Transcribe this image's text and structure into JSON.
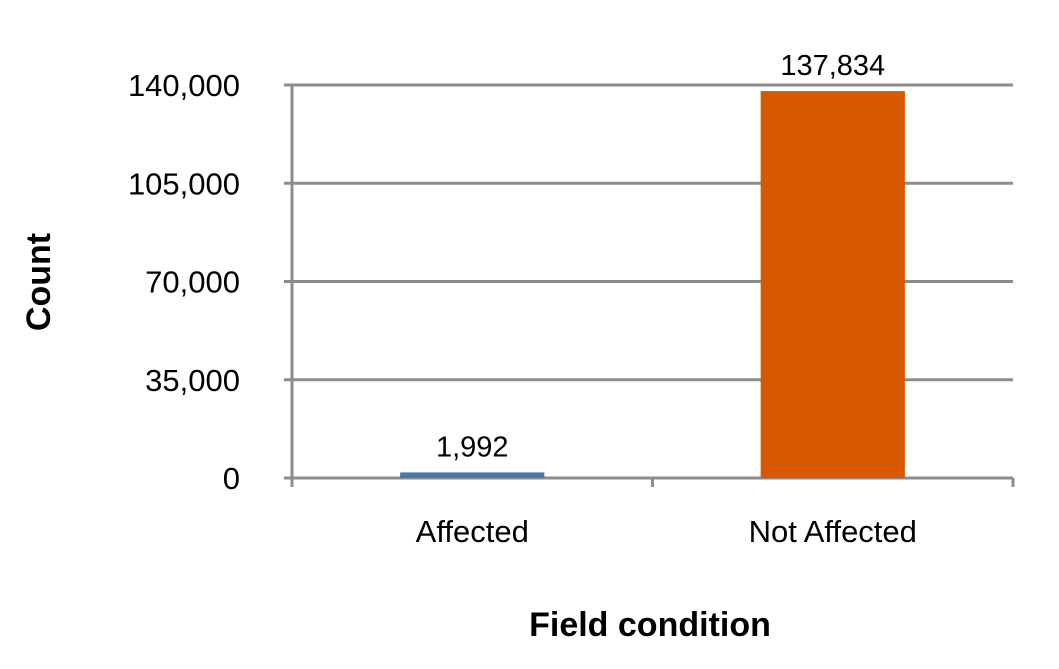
{
  "chart_data": {
    "type": "bar",
    "title": "",
    "xlabel": "Field condition",
    "ylabel": "Count",
    "categories": [
      "Affected",
      "Not Affected"
    ],
    "values": [
      1992,
      137834
    ],
    "value_labels": [
      "1,992",
      "137,834"
    ],
    "bar_colors": [
      "#4A76B0",
      "#D85800"
    ],
    "ylim": [
      0,
      140000
    ],
    "yticks": [
      0,
      35000,
      70000,
      105000,
      140000
    ],
    "ytick_labels": [
      "0",
      "35,000",
      "70,000",
      "105,000",
      "140,000"
    ],
    "grid": true,
    "legend": "none"
  },
  "colors": {
    "grid": "#8c8c8c",
    "axis": "#8c8c8c"
  }
}
